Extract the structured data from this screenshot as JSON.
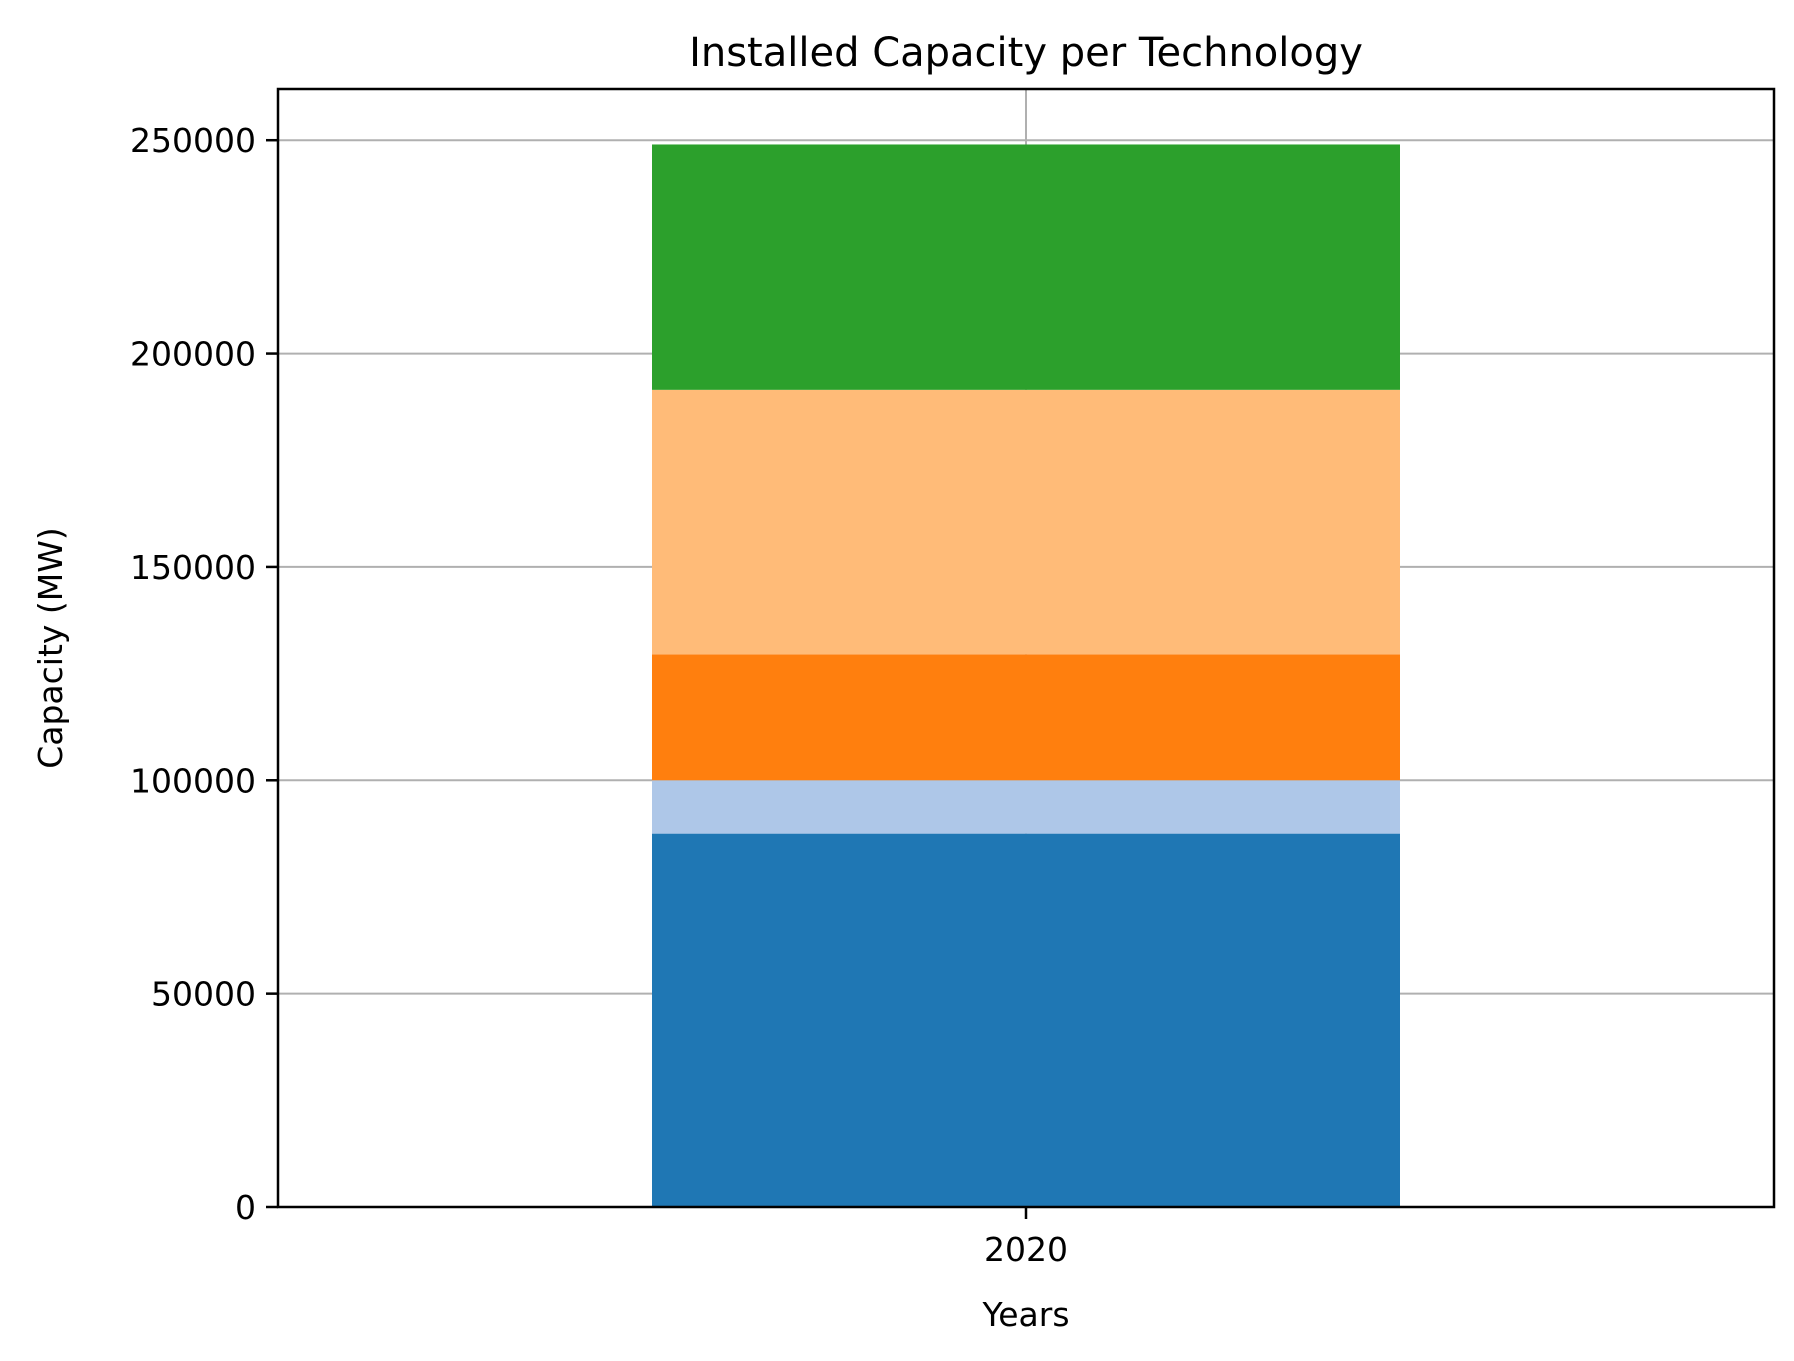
{
  "chart_data": {
    "type": "bar",
    "stacked": true,
    "title": "Installed Capacity per Technology",
    "xlabel": "Years",
    "ylabel": "Capacity (MW)",
    "categories": [
      "2020"
    ],
    "ylim": [
      0,
      262000
    ],
    "yticks": [
      0,
      50000,
      100000,
      150000,
      200000,
      250000
    ],
    "grid": true,
    "series": [
      {
        "values": [
          87500
        ],
        "color": "#1f77b4"
      },
      {
        "values": [
          12500
        ],
        "color": "#aec7e8"
      },
      {
        "values": [
          29500
        ],
        "color": "#ff7f0e"
      },
      {
        "values": [
          62000
        ],
        "color": "#ffbb78"
      },
      {
        "values": [
          57500
        ],
        "color": "#2ca02c"
      }
    ]
  }
}
